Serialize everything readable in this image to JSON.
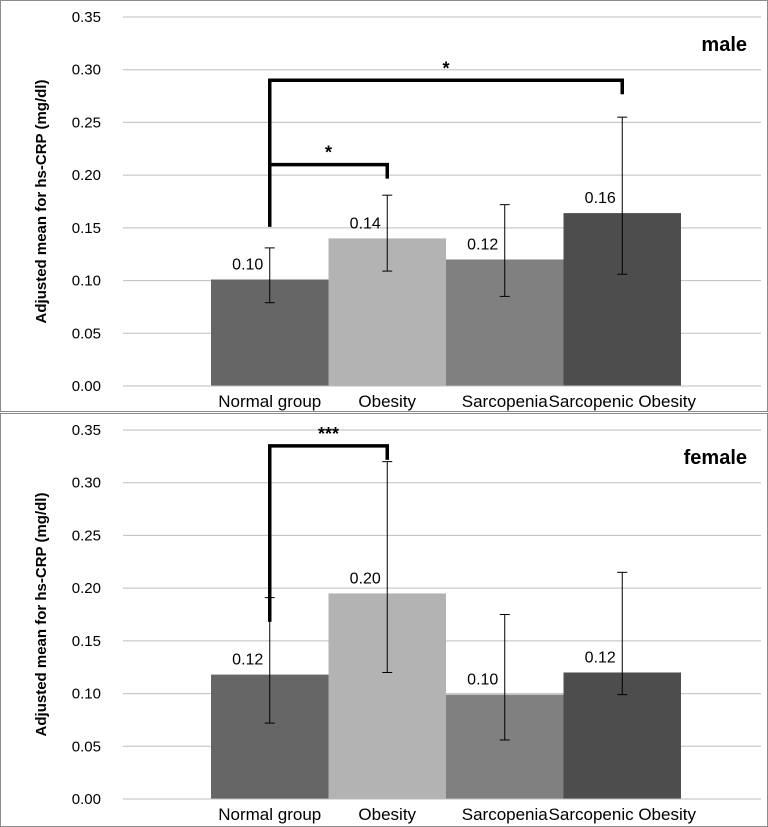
{
  "chart_data": [
    {
      "type": "bar",
      "title": "male",
      "ylabel": "Adjusted mean for hs-CRP (mg/dl)",
      "xlabel": "",
      "categories": [
        "Normal group",
        "Obesity",
        "Sarcopenia",
        "Sarcopenic Obesity"
      ],
      "values": [
        0.101,
        0.14,
        0.12,
        0.164
      ],
      "value_labels": [
        "0.10",
        "0.14",
        "0.12",
        "0.16"
      ],
      "error_low": [
        0.079,
        0.109,
        0.085,
        0.106
      ],
      "error_high": [
        0.131,
        0.181,
        0.172,
        0.255
      ],
      "colors": [
        "#666666",
        "#b3b3b3",
        "#808080",
        "#4d4d4d"
      ],
      "ylim": [
        0,
        0.35
      ],
      "yticks": [
        "0.00",
        "0.05",
        "0.10",
        "0.15",
        "0.20",
        "0.25",
        "0.30",
        "0.35"
      ],
      "grid": true,
      "significance": [
        {
          "from": 0,
          "to": 1,
          "label": "*",
          "bracket_y": 0.21
        },
        {
          "from": 0,
          "to": 3,
          "label": "*",
          "bracket_y": 0.29
        }
      ]
    },
    {
      "type": "bar",
      "title": "female",
      "ylabel": "Adjusted mean for hs-CRP (mg/dl)",
      "xlabel": "",
      "categories": [
        "Normal group",
        "Obesity",
        "Sarcopenia",
        "Sarcopenic Obesity"
      ],
      "values": [
        0.118,
        0.195,
        0.099,
        0.12
      ],
      "value_labels": [
        "0.12",
        "0.20",
        "0.10",
        "0.12"
      ],
      "error_low": [
        0.072,
        0.12,
        0.056,
        0.099
      ],
      "error_high": [
        0.191,
        0.32,
        0.175,
        0.215
      ],
      "colors": [
        "#666666",
        "#b3b3b3",
        "#808080",
        "#4d4d4d"
      ],
      "ylim": [
        0,
        0.35
      ],
      "yticks": [
        "0.00",
        "0.05",
        "0.10",
        "0.15",
        "0.20",
        "0.25",
        "0.30",
        "0.35"
      ],
      "grid": true,
      "significance": [
        {
          "from": 0,
          "to": 1,
          "label": "***",
          "bracket_y": 0.335
        }
      ]
    }
  ]
}
